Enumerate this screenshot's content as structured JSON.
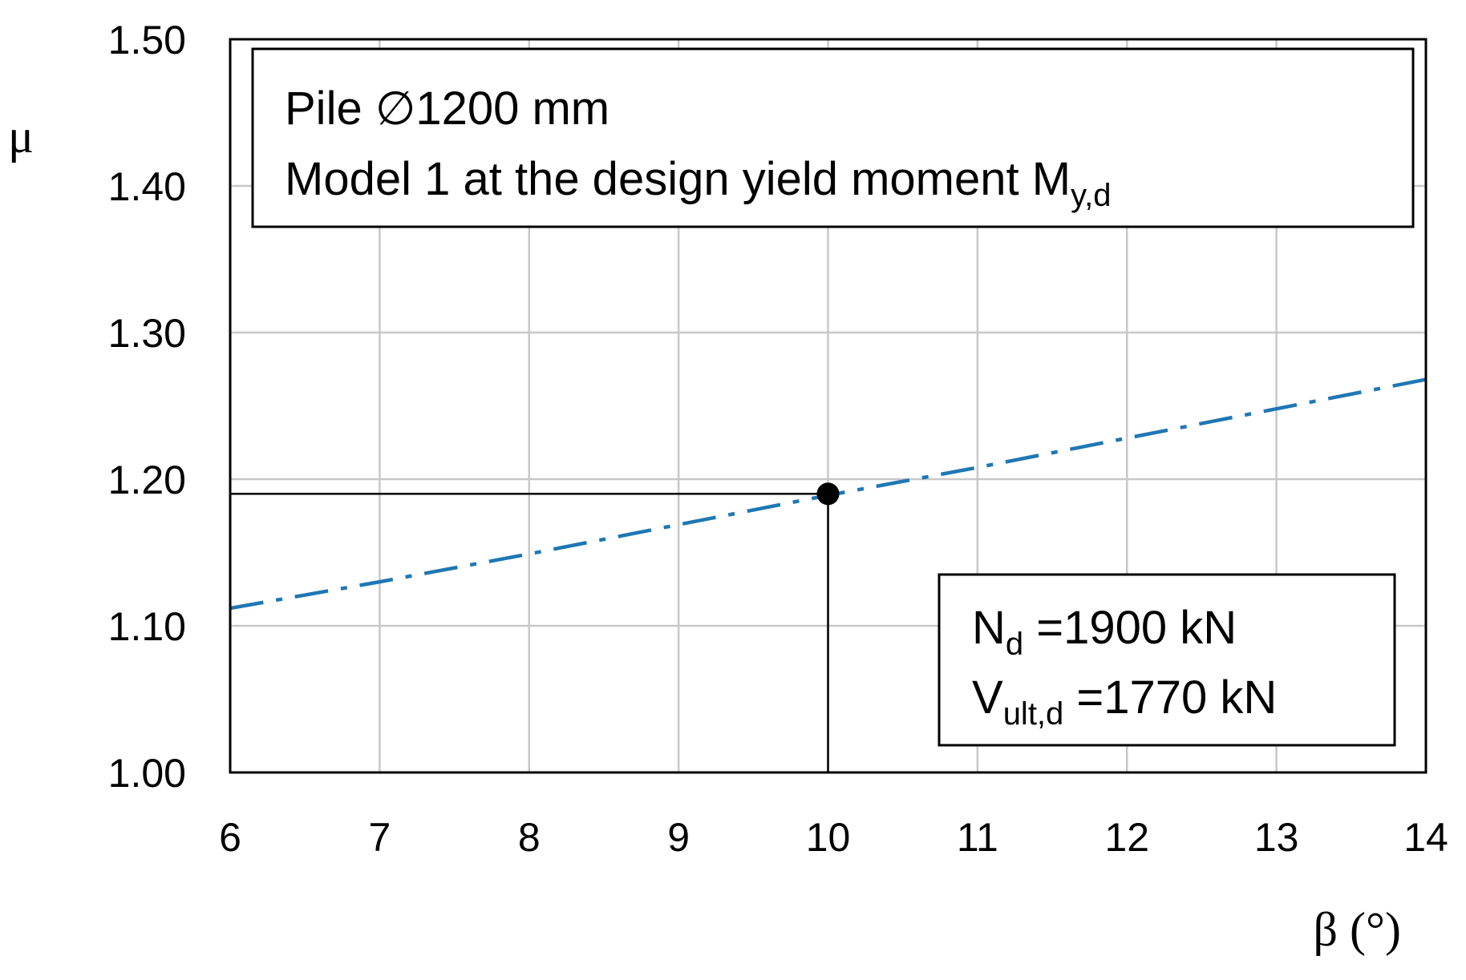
{
  "chart_data": {
    "type": "line",
    "xlabel": "β (°)",
    "ylabel": "μ",
    "xlim": [
      6,
      14
    ],
    "ylim": [
      1.0,
      1.5
    ],
    "x_ticks": [
      "6",
      "7",
      "8",
      "9",
      "10",
      "11",
      "12",
      "13",
      "14"
    ],
    "y_ticks": [
      "1.00",
      "1.10",
      "1.20",
      "1.30",
      "1.40",
      "1.50"
    ],
    "grid": true,
    "series": [
      {
        "x": [
          6,
          7,
          8,
          9,
          10,
          11,
          12,
          13,
          14
        ],
        "y": [
          1.112,
          1.13,
          1.149,
          1.169,
          1.189,
          1.208,
          1.228,
          1.248,
          1.268
        ],
        "color": "#1f77b4",
        "style": "dash-dot"
      }
    ],
    "marker": {
      "x": 10,
      "y": 1.19,
      "color": "#000000"
    },
    "guide_lines": {
      "x": 10,
      "y": 1.19
    },
    "annotations": {
      "box1": {
        "line1": "Pile ∅1200 mm",
        "line2_main": "Model 1 at the design yield moment M",
        "line2_sub": "y,d"
      },
      "box2": {
        "line1_main": "N",
        "line1_sub": "d",
        "line1_rest": " =1900 kN",
        "line2_main": "V",
        "line2_sub": "ult,d",
        "line2_rest": " =1770 kN"
      }
    }
  }
}
